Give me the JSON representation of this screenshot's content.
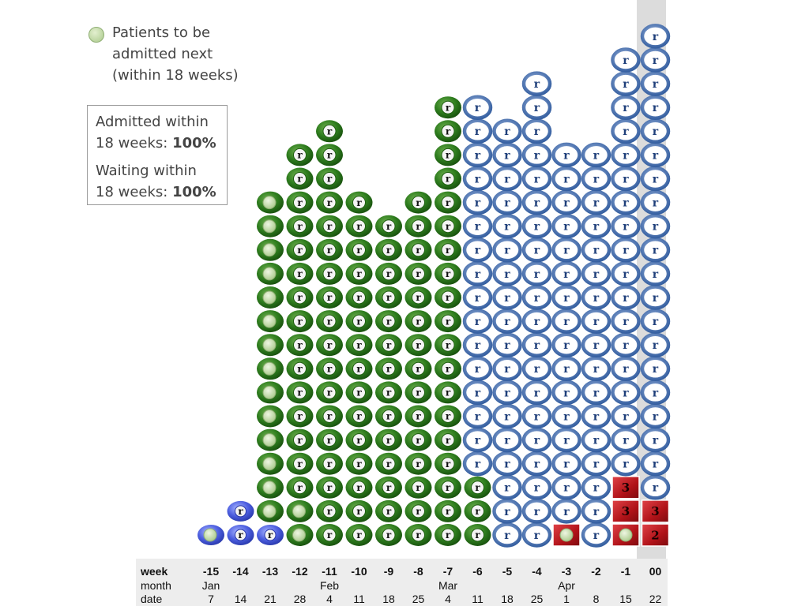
{
  "legend": {
    "lines": [
      "Patients to be",
      "admitted next",
      "(within 18 weeks)"
    ]
  },
  "stats": {
    "admitted_label_1": "Admitted within",
    "admitted_label_2": "18 weeks: ",
    "admitted_value": "100%",
    "waiting_label_1": "Waiting within",
    "waiting_label_2": "18 weeks: ",
    "waiting_value": "100%"
  },
  "axis": {
    "week_label": "week",
    "month_label": "month",
    "date_label": "date"
  },
  "colors": {
    "admitted_green": "#2e7d1e",
    "waiting_blue": "#3a64a8",
    "over_18_red": "#c0151b",
    "next_to_admit": "#c7dcae",
    "other_blue": "#4d5fe0",
    "current_week_band": "#dcdcdc"
  },
  "chart_data": {
    "type": "table",
    "description_keys": {
      "A": "admitted (green, r)",
      "N": "to be admitted next (green with light dot)",
      "W": "waiting (blue ring, r)",
      "B": "blue pill with marker",
      "BN": "blue pill with light dot",
      "R3": "red square, 3",
      "R2": "red square, 2",
      "RN": "red square with light dot"
    },
    "columns": [
      {
        "week": "-15",
        "month": "Jan",
        "date": "7",
        "stack": [
          "BN"
        ]
      },
      {
        "week": "-14",
        "month": "",
        "date": "14",
        "stack": [
          "B",
          "B"
        ]
      },
      {
        "week": "-13",
        "month": "",
        "date": "21",
        "stack": [
          "B",
          "N",
          "N",
          "N",
          "N",
          "N",
          "N",
          "N",
          "N",
          "N",
          "N",
          "N",
          "N",
          "N",
          "N"
        ]
      },
      {
        "week": "-12",
        "month": "",
        "date": "28",
        "stack": [
          "N",
          "N",
          "A",
          "A",
          "A",
          "A",
          "A",
          "A",
          "A",
          "A",
          "A",
          "A",
          "A",
          "A",
          "A",
          "A",
          "A"
        ]
      },
      {
        "week": "-11",
        "month": "Feb",
        "date": "4",
        "stack": [
          "A",
          "A",
          "A",
          "A",
          "A",
          "A",
          "A",
          "A",
          "A",
          "A",
          "A",
          "A",
          "A",
          "A",
          "A",
          "A",
          "A",
          "A"
        ]
      },
      {
        "week": "-10",
        "month": "",
        "date": "11",
        "stack": [
          "A",
          "A",
          "A",
          "A",
          "A",
          "A",
          "A",
          "A",
          "A",
          "A",
          "A",
          "A",
          "A",
          "A",
          "A"
        ]
      },
      {
        "week": "-9",
        "month": "",
        "date": "18",
        "stack": [
          "A",
          "A",
          "A",
          "A",
          "A",
          "A",
          "A",
          "A",
          "A",
          "A",
          "A",
          "A",
          "A",
          "A"
        ]
      },
      {
        "week": "-8",
        "month": "",
        "date": "25",
        "stack": [
          "A",
          "A",
          "A",
          "A",
          "A",
          "A",
          "A",
          "A",
          "A",
          "A",
          "A",
          "A",
          "A",
          "A",
          "A"
        ]
      },
      {
        "week": "-7",
        "month": "Mar",
        "date": "4",
        "stack": [
          "A",
          "A",
          "A",
          "A",
          "A",
          "A",
          "A",
          "A",
          "A",
          "A",
          "A",
          "A",
          "A",
          "A",
          "A",
          "A",
          "A",
          "A",
          "A"
        ]
      },
      {
        "week": "-6",
        "month": "",
        "date": "11",
        "stack": [
          "A",
          "A",
          "A",
          "W",
          "W",
          "W",
          "W",
          "W",
          "W",
          "W",
          "W",
          "W",
          "W",
          "W",
          "W",
          "W",
          "W",
          "W",
          "W"
        ]
      },
      {
        "week": "-5",
        "month": "",
        "date": "18",
        "stack": [
          "W",
          "W",
          "W",
          "W",
          "W",
          "W",
          "W",
          "W",
          "W",
          "W",
          "W",
          "W",
          "W",
          "W",
          "W",
          "W",
          "W",
          "W"
        ]
      },
      {
        "week": "-4",
        "month": "",
        "date": "25",
        "stack": [
          "W",
          "W",
          "W",
          "W",
          "W",
          "W",
          "W",
          "W",
          "W",
          "W",
          "W",
          "W",
          "W",
          "W",
          "W",
          "W",
          "W",
          "W",
          "W",
          "W"
        ]
      },
      {
        "week": "-3",
        "month": "Apr",
        "date": "1",
        "stack": [
          "RN",
          "W",
          "W",
          "W",
          "W",
          "W",
          "W",
          "W",
          "W",
          "W",
          "W",
          "W",
          "W",
          "W",
          "W",
          "W",
          "W"
        ]
      },
      {
        "week": "-2",
        "month": "",
        "date": "8",
        "stack": [
          "W",
          "W",
          "W",
          "W",
          "W",
          "W",
          "W",
          "W",
          "W",
          "W",
          "W",
          "W",
          "W",
          "W",
          "W",
          "W",
          "W"
        ]
      },
      {
        "week": "-1",
        "month": "",
        "date": "15",
        "stack": [
          "RN",
          "R3",
          "R3",
          "W",
          "W",
          "W",
          "W",
          "W",
          "W",
          "W",
          "W",
          "W",
          "W",
          "W",
          "W",
          "W",
          "W",
          "W",
          "W",
          "W",
          "W"
        ]
      },
      {
        "week": "00",
        "month": "",
        "date": "22",
        "stack": [
          "R2",
          "R3",
          "W",
          "W",
          "W",
          "W",
          "W",
          "W",
          "W",
          "W",
          "W",
          "W",
          "W",
          "W",
          "W",
          "W",
          "W",
          "W",
          "W",
          "W",
          "W",
          "W"
        ]
      }
    ]
  }
}
